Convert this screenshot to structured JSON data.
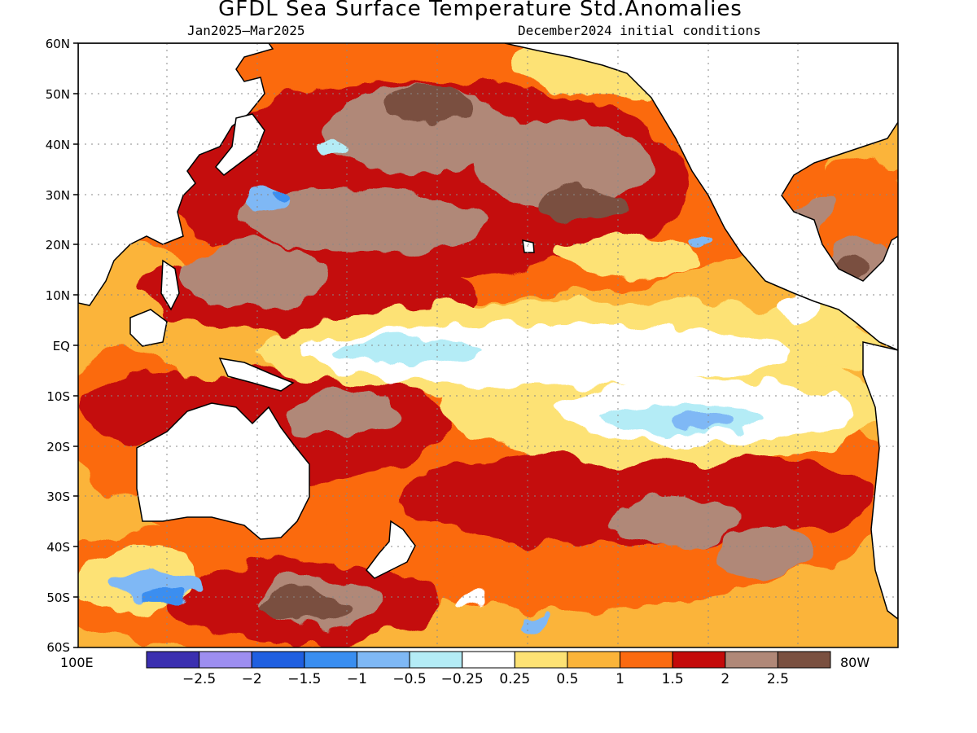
{
  "title": "GFDL Sea Surface Temperature Std.Anomalies",
  "subtitle_left": "Jan2025–Mar2025",
  "subtitle_right": "December2024 initial conditions",
  "lat_labels": [
    "60N",
    "50N",
    "40N",
    "30N",
    "20N",
    "10N",
    "EQ",
    "10S",
    "20S",
    "30S",
    "40S",
    "50S",
    "60S"
  ],
  "lon_labels": {
    "left": "100E",
    "right": "80W"
  },
  "colorbar": {
    "colors": [
      "#3b2fb0",
      "#9d8ef0",
      "#1f5fe0",
      "#3a8ef0",
      "#7fb8f5",
      "#b4ecf6",
      "#ffffff",
      "#fde274",
      "#fbb43a",
      "#fb6a10",
      "#c40a0a",
      "#b08878",
      "#7a5040"
    ],
    "labels": [
      "−2.5",
      "−2",
      "−1.5",
      "−1",
      "−0.5",
      "−0.25",
      "0.25",
      "0.5",
      "1",
      "1.5",
      "2",
      "2.5"
    ]
  }
}
